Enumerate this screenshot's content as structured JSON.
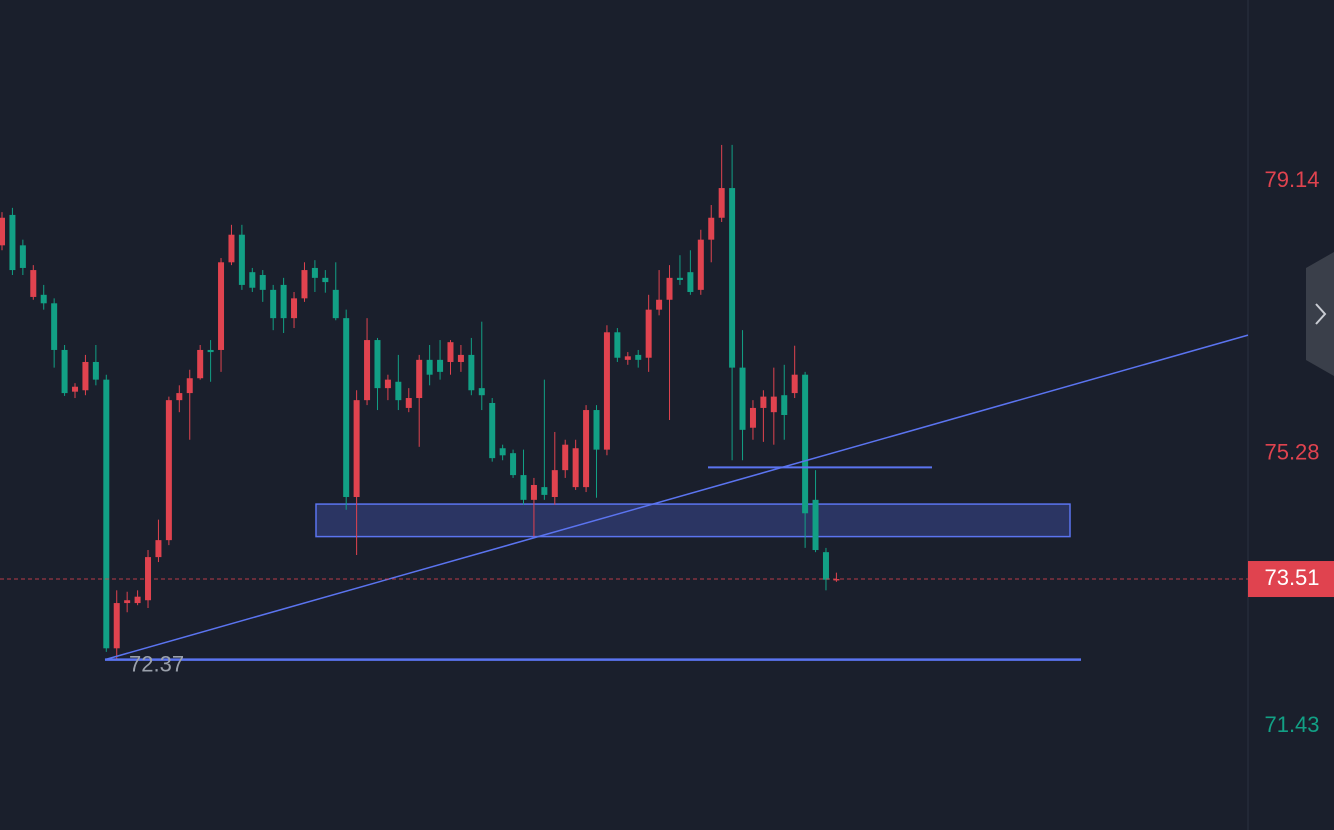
{
  "chart_data": {
    "type": "candlestick",
    "up_color": "#e0434f",
    "down_color": "#12a085",
    "drawing_color": "#5b74f0",
    "ylim": [
      69.96,
      81.7
    ],
    "yticks": [
      79.14,
      75.28,
      71.43
    ],
    "open": [
      78.23,
      78.66,
      78.23,
      77.5,
      77.53,
      77.41,
      76.75,
      76.16,
      76.18,
      76.58,
      76.33,
      72.53,
      73.17,
      73.17,
      73.21,
      73.82,
      74.06,
      76.04,
      76.14,
      76.35,
      76.75,
      76.75,
      77.99,
      78.38,
      77.85,
      77.81,
      77.6,
      77.67,
      77.2,
      77.48,
      77.91,
      77.77,
      77.6,
      77.2,
      74.67,
      76.04,
      76.89,
      76.21,
      76.3,
      75.93,
      76.07,
      76.61,
      76.61,
      76.58,
      76.58,
      76.68,
      76.21,
      76.0,
      75.36,
      75.29,
      74.98,
      74.63,
      74.81,
      74.67,
      75.05,
      74.81,
      74.81,
      75.9,
      75.34,
      77.0,
      76.61,
      76.68,
      76.64,
      77.32,
      77.46,
      77.77,
      77.85,
      77.6,
      78.31,
      78.62,
      79.04,
      76.5,
      75.65,
      75.93,
      75.87,
      76.11,
      76.14,
      76.4,
      74.63,
      73.89,
      73.49
    ],
    "high": [
      78.7,
      78.76,
      78.31,
      77.95,
      77.67,
      77.48,
      76.82,
      76.28,
      76.68,
      76.82,
      76.4,
      73.35,
      73.33,
      73.35,
      73.92,
      74.35,
      76.09,
      76.25,
      76.47,
      76.82,
      76.89,
      78.05,
      78.52,
      78.52,
      77.91,
      77.88,
      77.67,
      77.77,
      77.57,
      77.99,
      78.02,
      77.88,
      77.99,
      77.32,
      76.18,
      77.2,
      76.92,
      76.4,
      76.68,
      76.21,
      76.68,
      76.82,
      76.89,
      76.89,
      76.82,
      76.92,
      77.15,
      76.07,
      75.41,
      75.34,
      75.34,
      74.94,
      76.33,
      75.59,
      75.48,
      75.48,
      75.97,
      75.97,
      77.1,
      77.06,
      76.72,
      76.75,
      77.53,
      77.88,
      77.95,
      78.09,
      78.16,
      78.45,
      78.8,
      79.65,
      79.65,
      77.03,
      76.04,
      76.18,
      76.5,
      76.54,
      76.81,
      76.44,
      75.05,
      73.95,
      73.6
    ],
    "low": [
      78.16,
      77.81,
      77.81,
      77.46,
      77.32,
      76.5,
      76.1,
      76.07,
      76.11,
      76.25,
      72.48,
      72.37,
      73.04,
      73.14,
      73.1,
      73.75,
      73.99,
      75.87,
      75.48,
      76.33,
      76.3,
      76.44,
      77.95,
      77.6,
      77.57,
      77.43,
      77.03,
      76.99,
      77.06,
      77.43,
      77.57,
      77.56,
      77.17,
      74.49,
      73.85,
      75.97,
      75.9,
      76.04,
      75.9,
      75.87,
      75.38,
      76.25,
      76.33,
      76.4,
      76.44,
      76.11,
      75.9,
      75.17,
      75.19,
      74.94,
      74.56,
      74.11,
      74.63,
      74.56,
      74.94,
      74.77,
      74.74,
      74.66,
      75.26,
      76.58,
      76.54,
      76.5,
      76.44,
      77.24,
      75.76,
      77.67,
      77.53,
      77.53,
      77.99,
      78.56,
      75.19,
      75.19,
      75.48,
      75.45,
      75.41,
      75.48,
      76.07,
      73.95,
      73.89,
      73.35,
      73.47
    ],
    "close": [
      78.62,
      77.88,
      77.91,
      77.88,
      77.41,
      76.75,
      76.14,
      76.23,
      76.58,
      76.33,
      72.53,
      73.17,
      73.21,
      73.26,
      73.82,
      74.06,
      76.04,
      76.14,
      76.35,
      76.75,
      76.72,
      77.99,
      78.38,
      77.67,
      77.63,
      77.6,
      77.2,
      77.2,
      77.48,
      77.88,
      77.77,
      77.71,
      77.2,
      74.67,
      76.04,
      76.89,
      76.21,
      76.33,
      76.04,
      76.07,
      76.61,
      76.4,
      76.44,
      76.86,
      76.68,
      76.18,
      76.11,
      75.22,
      75.26,
      74.98,
      74.63,
      74.84,
      74.7,
      75.05,
      75.41,
      75.36,
      75.9,
      75.34,
      77.0,
      76.64,
      76.66,
      76.61,
      77.32,
      77.46,
      77.77,
      77.74,
      77.57,
      78.31,
      78.62,
      79.04,
      76.5,
      75.62,
      75.93,
      76.09,
      76.09,
      75.83,
      76.4,
      74.44,
      73.92,
      73.5,
      73.51
    ],
    "support_line": 72.37,
    "resistance_line": 75.09,
    "zone": [
      74.11,
      74.57
    ],
    "trendline": [
      72.37,
      76.96
    ]
  }
}
